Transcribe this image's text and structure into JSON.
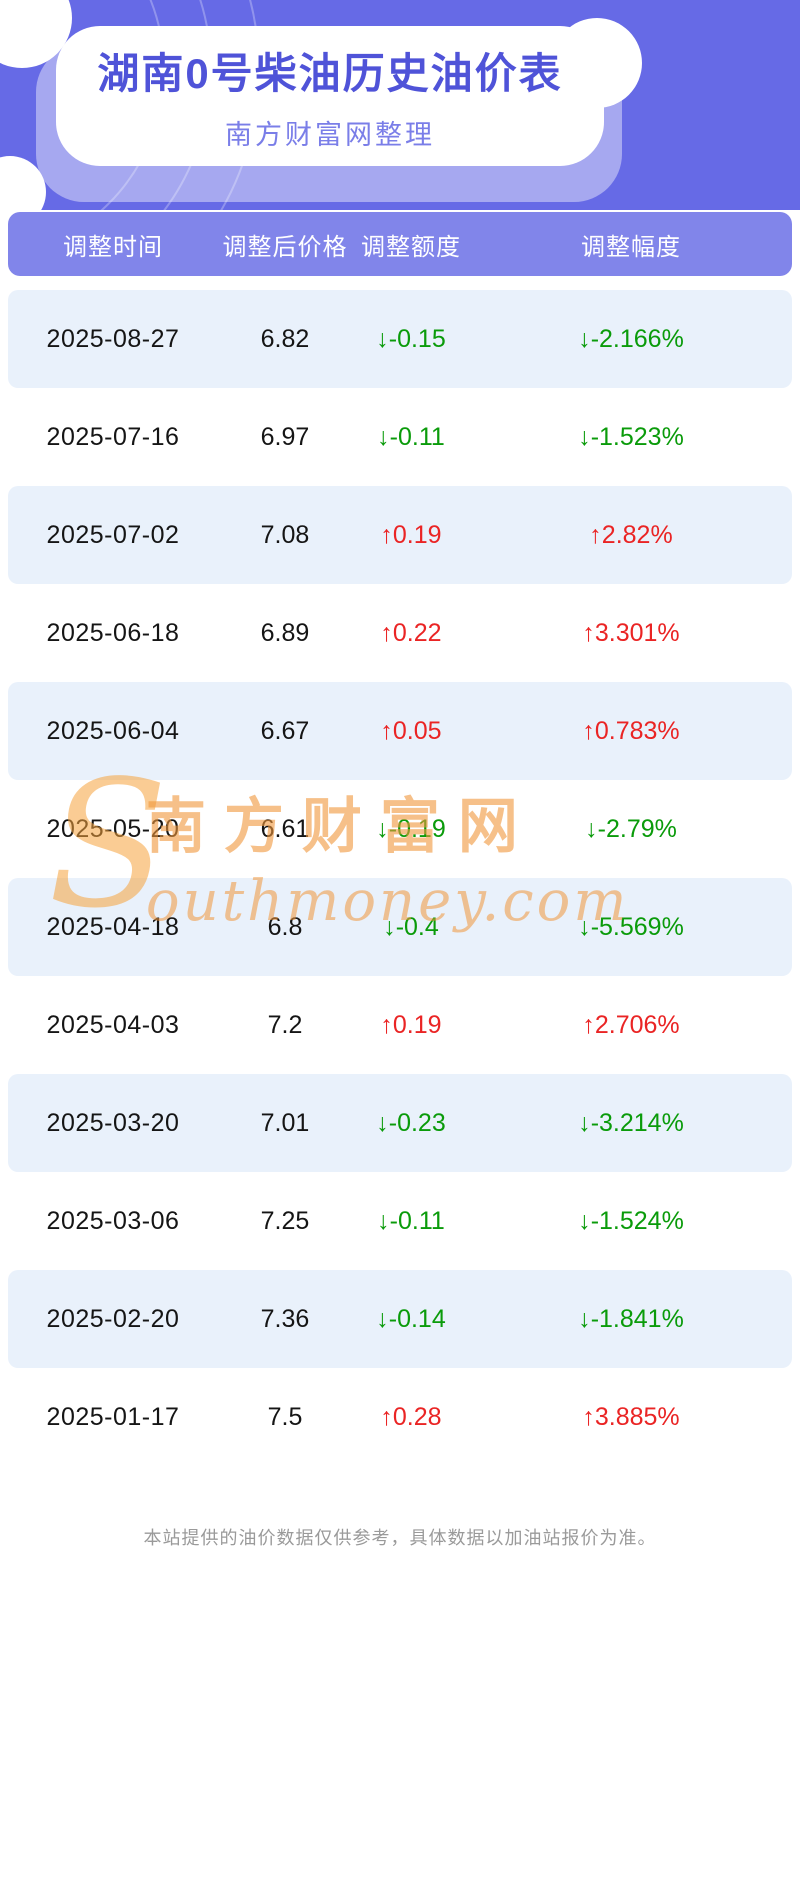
{
  "hero": {
    "title": "湖南0号柴油历史油价表",
    "subtitle": "南方财富网整理"
  },
  "table": {
    "headers": [
      "调整时间",
      "调整后价格",
      "调整额度",
      "调整幅度"
    ],
    "rows": [
      {
        "date": "2025-08-27",
        "price": "6.82",
        "change": "↓-0.15",
        "percent": "↓-2.166%",
        "direction": "down"
      },
      {
        "date": "2025-07-16",
        "price": "6.97",
        "change": "↓-0.11",
        "percent": "↓-1.523%",
        "direction": "down"
      },
      {
        "date": "2025-07-02",
        "price": "7.08",
        "change": "↑0.19",
        "percent": "↑2.82%",
        "direction": "up"
      },
      {
        "date": "2025-06-18",
        "price": "6.89",
        "change": "↑0.22",
        "percent": "↑3.301%",
        "direction": "up"
      },
      {
        "date": "2025-06-04",
        "price": "6.67",
        "change": "↑0.05",
        "percent": "↑0.783%",
        "direction": "up"
      },
      {
        "date": "2025-05-20",
        "price": "6.61",
        "change": "↓-0.19",
        "percent": "↓-2.79%",
        "direction": "down"
      },
      {
        "date": "2025-04-18",
        "price": "6.8",
        "change": "↓-0.4",
        "percent": "↓-5.569%",
        "direction": "down"
      },
      {
        "date": "2025-04-03",
        "price": "7.2",
        "change": "↑0.19",
        "percent": "↑2.706%",
        "direction": "up"
      },
      {
        "date": "2025-03-20",
        "price": "7.01",
        "change": "↓-0.23",
        "percent": "↓-3.214%",
        "direction": "down"
      },
      {
        "date": "2025-03-06",
        "price": "7.25",
        "change": "↓-0.11",
        "percent": "↓-1.524%",
        "direction": "down"
      },
      {
        "date": "2025-02-20",
        "price": "7.36",
        "change": "↓-0.14",
        "percent": "↓-1.841%",
        "direction": "down"
      },
      {
        "date": "2025-01-17",
        "price": "7.5",
        "change": "↑0.28",
        "percent": "↑3.885%",
        "direction": "up"
      }
    ]
  },
  "watermark": {
    "initial": "S",
    "cn": "南方财富网",
    "en": "outhmoney.com"
  },
  "footer": {
    "disclaimer": "本站提供的油价数据仅供参考，具体数据以加油站报价为准。"
  },
  "colors": {
    "hero_purple": "#666ae6",
    "table_header_purple": "#8185ea",
    "row_alt_blue": "#e9f1fb",
    "title_purple": "#4f53d8",
    "up_red": "#ea2424",
    "down_green": "#0a9b0a",
    "watermark_orange": "#f0963a",
    "disclaimer_gray": "#9a9a9a"
  }
}
